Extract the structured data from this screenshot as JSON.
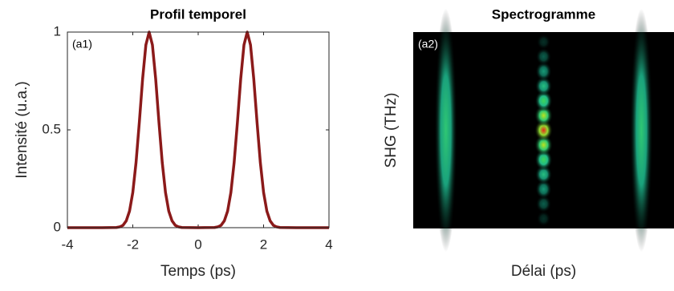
{
  "chart_data": [
    {
      "type": "line",
      "title": "Profil temporel",
      "x_label": "Temps (ps)",
      "y_label": "Intensité (u.a.)",
      "annotation": "(a1)",
      "x": [
        -4,
        -3,
        -2.5,
        -2.4,
        -2.3,
        -2.2,
        -2.1,
        -2.0,
        -1.9,
        -1.8,
        -1.7,
        -1.6,
        -1.5,
        -1.4,
        -1.3,
        -1.2,
        -1.1,
        -1.0,
        -0.9,
        -0.8,
        -0.7,
        -0.6,
        -0.5,
        0,
        0.5,
        0.6,
        0.7,
        0.8,
        0.9,
        1.0,
        1.1,
        1.2,
        1.3,
        1.4,
        1.5,
        1.6,
        1.7,
        1.8,
        1.9,
        2.0,
        2.1,
        2.2,
        2.3,
        2.4,
        2.5,
        3,
        4
      ],
      "series": [
        {
          "color": "#8b1a1a",
          "values": [
            0,
            0,
            0.001,
            0.004,
            0.012,
            0.035,
            0.085,
            0.18,
            0.334,
            0.539,
            0.76,
            0.934,
            1,
            0.934,
            0.76,
            0.539,
            0.334,
            0.18,
            0.085,
            0.035,
            0.012,
            0.004,
            0.001,
            0,
            0.001,
            0.004,
            0.012,
            0.035,
            0.085,
            0.18,
            0.334,
            0.539,
            0.76,
            0.934,
            1,
            0.934,
            0.76,
            0.539,
            0.334,
            0.18,
            0.085,
            0.035,
            0.012,
            0.004,
            0.001,
            0,
            0
          ]
        }
      ],
      "xlim": [
        -4,
        4
      ],
      "xticks": [
        -4,
        -2,
        0,
        2,
        4
      ],
      "ylim": [
        0,
        1
      ],
      "yticks": [
        0,
        0.5,
        1
      ]
    },
    {
      "type": "heatmap",
      "title": "Spectrogramme",
      "x_label": "Délai (ps)",
      "y_label": "SHG (THz)",
      "annotation": "(a2)",
      "background": "#000000",
      "colormap": [
        "#000000",
        "#0b5e4c",
        "#1fb98c",
        "#3ed45a",
        "#e6e60a",
        "#e8281a"
      ],
      "xlim": [
        -4,
        4
      ],
      "ylim": [
        -1,
        1
      ],
      "x": [
        -3,
        3,
        0,
        0,
        0,
        0,
        0,
        0,
        0,
        0,
        0,
        0,
        0,
        0,
        0
      ],
      "y": [
        0,
        0,
        -0.9,
        -0.75,
        -0.6,
        -0.45,
        -0.3,
        -0.15,
        0,
        0.15,
        0.3,
        0.45,
        0.6,
        0.75,
        0.9
      ],
      "values": [
        0.5,
        0.5,
        0.1,
        0.2,
        0.33,
        0.45,
        0.6,
        0.75,
        1,
        0.75,
        0.6,
        0.45,
        0.33,
        0.2,
        0.1
      ],
      "widths": [
        0.35,
        0.35,
        0.22,
        0.24,
        0.25,
        0.26,
        0.27,
        0.28,
        0.28,
        0.28,
        0.27,
        0.26,
        0.25,
        0.24,
        0.22
      ],
      "heights": [
        0.62,
        0.62,
        0.04,
        0.045,
        0.05,
        0.05,
        0.055,
        0.055,
        0.055,
        0.055,
        0.055,
        0.05,
        0.05,
        0.045,
        0.04
      ]
    }
  ]
}
